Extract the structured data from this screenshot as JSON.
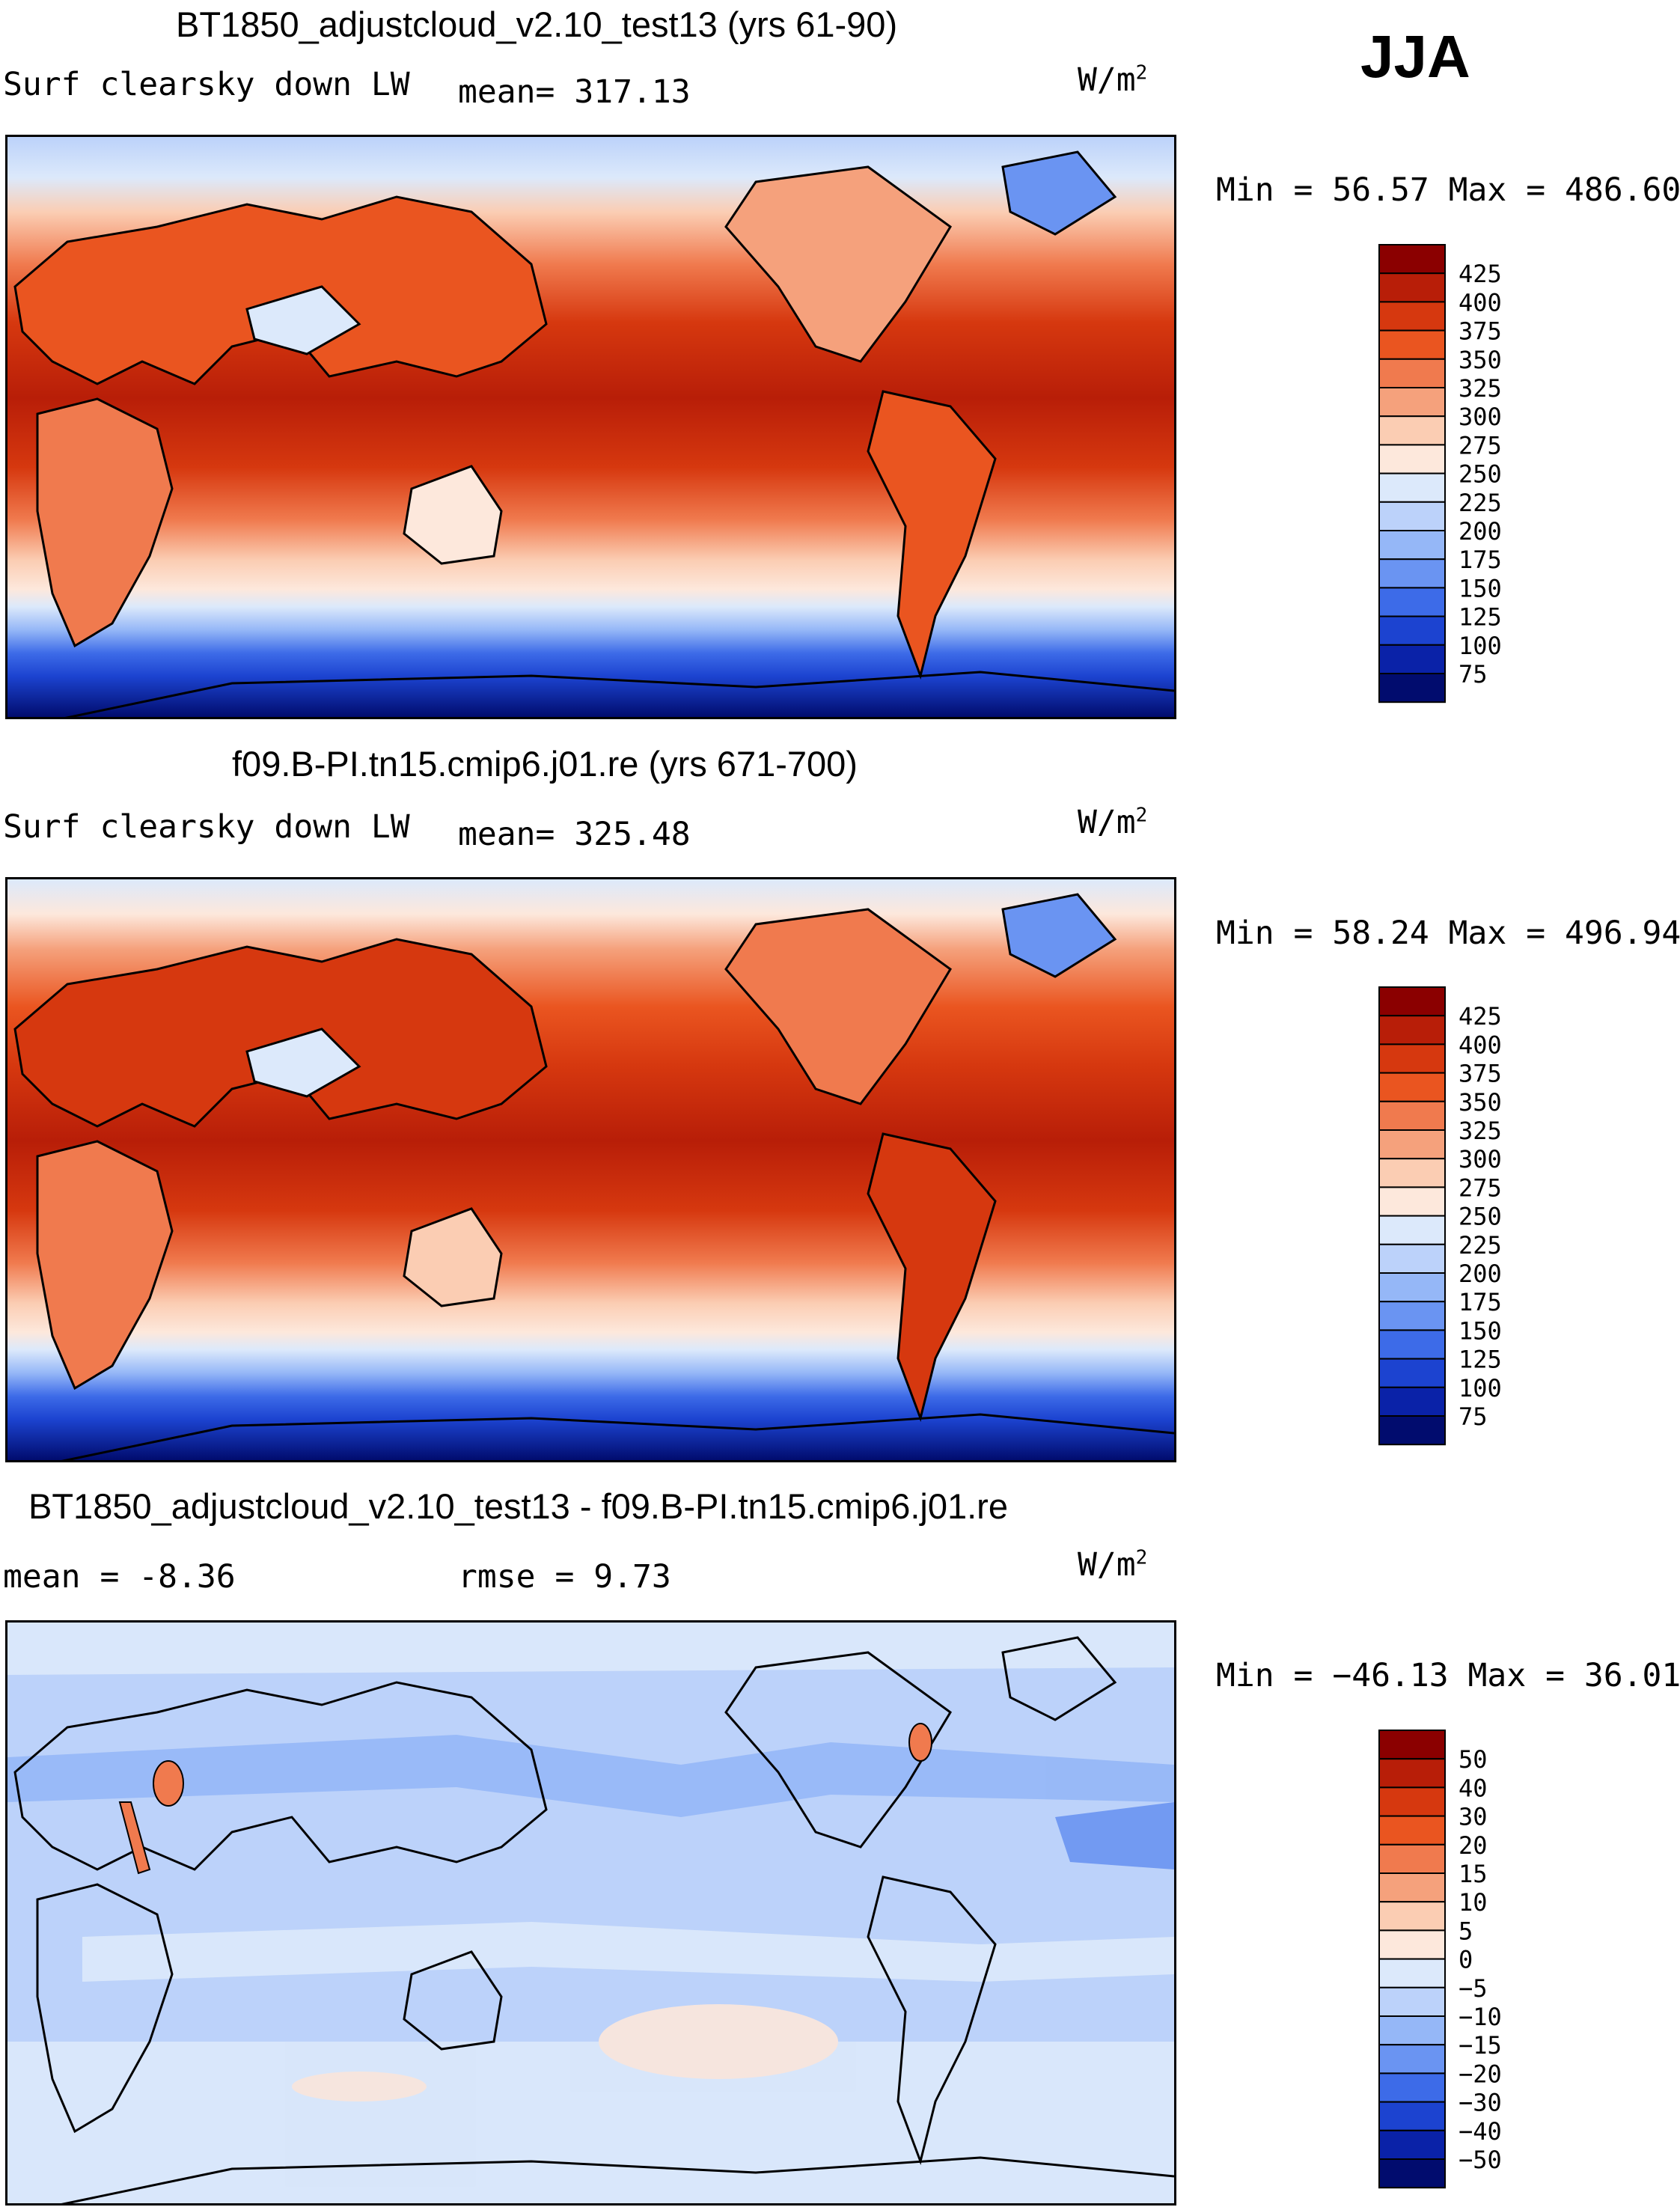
{
  "season": "JJA",
  "panels": [
    {
      "title": "BT1850_adjustcloud_v2.10_test13 (yrs 61-90)",
      "left_label": "Surf clearsky down LW",
      "mid_label": "mean= 317.13",
      "units": "W/m",
      "units_sup": "2",
      "minmax": "Min =   56.57 Max = 486.60"
    },
    {
      "title": "f09.B-PI.tn15.cmip6.j01.re (yrs 671-700)",
      "left_label": "Surf clearsky down LW",
      "mid_label": "mean= 325.48",
      "units": "W/m",
      "units_sup": "2",
      "minmax": "Min =   58.24 Max = 496.94"
    },
    {
      "title": "BT1850_adjustcloud_v2.10_test13 - f09.B-PI.tn15.cmip6.j01.re",
      "left_label": "mean =   -8.36",
      "mid_label": "rmse =    9.73",
      "units": "W/m",
      "units_sup": "2",
      "minmax": "Min = −46.13 Max =  36.01"
    }
  ],
  "chart_data": [
    {
      "type": "heatmap",
      "title": "BT1850_adjustcloud_v2.10_test13 (yrs 61-90)",
      "variable": "Surf clearsky down LW",
      "mean": 317.13,
      "min": 56.57,
      "max": 486.6,
      "units": "W/m2",
      "colorbar_levels": [
        "425",
        "400",
        "375",
        "350",
        "325",
        "300",
        "275",
        "250",
        "225",
        "200",
        "175",
        "150",
        "125",
        "100",
        "75"
      ],
      "colorbar_colors": [
        "#8b0000",
        "#b81e08",
        "#d6380f",
        "#ea5520",
        "#f07a4e",
        "#f5a17c",
        "#fbcdb3",
        "#fde8dc",
        "#dce9fb",
        "#bcd2fa",
        "#95b7f7",
        "#6a94f2",
        "#3d6be8",
        "#1c43d0",
        "#0a22a8",
        "#010c6e"
      ],
      "field": "surface clear-sky downwelling longwave, warm tropics (~400) to cold Antarctica (~75)"
    },
    {
      "type": "heatmap",
      "title": "f09.B-PI.tn15.cmip6.j01.re (yrs 671-700)",
      "variable": "Surf clearsky down LW",
      "mean": 325.48,
      "min": 58.24,
      "max": 496.94,
      "units": "W/m2",
      "colorbar_levels": [
        "425",
        "400",
        "375",
        "350",
        "325",
        "300",
        "275",
        "250",
        "225",
        "200",
        "175",
        "150",
        "125",
        "100",
        "75"
      ],
      "colorbar_colors": [
        "#8b0000",
        "#b81e08",
        "#d6380f",
        "#ea5520",
        "#f07a4e",
        "#f5a17c",
        "#fbcdb3",
        "#fde8dc",
        "#dce9fb",
        "#bcd2fa",
        "#95b7f7",
        "#6a94f2",
        "#3d6be8",
        "#1c43d0",
        "#0a22a8",
        "#010c6e"
      ],
      "field": "surface clear-sky downwelling longwave"
    },
    {
      "type": "heatmap",
      "title": "BT1850_adjustcloud_v2.10_test13 - f09.B-PI.tn15.cmip6.j01.re",
      "variable": "difference",
      "mean": -8.36,
      "rmse": 9.73,
      "min": -46.13,
      "max": 36.01,
      "units": "W/m2",
      "colorbar_levels": [
        "50",
        "40",
        "30",
        "20",
        "15",
        "10",
        "5",
        "0",
        "−5",
        "−10",
        "−15",
        "−20",
        "−30",
        "−40",
        "−50"
      ],
      "colorbar_colors": [
        "#8b0000",
        "#b81e08",
        "#d6380f",
        "#ea5520",
        "#f07a4e",
        "#f5a17c",
        "#fbcdb3",
        "#fde8dc",
        "#dce9fb",
        "#bcd2fa",
        "#95b7f7",
        "#6a94f2",
        "#3d6be8",
        "#1c43d0",
        "#0a22a8",
        "#010c6e"
      ],
      "field": "mostly slightly negative (-5 to -15) everywhere, small positive spots"
    }
  ]
}
